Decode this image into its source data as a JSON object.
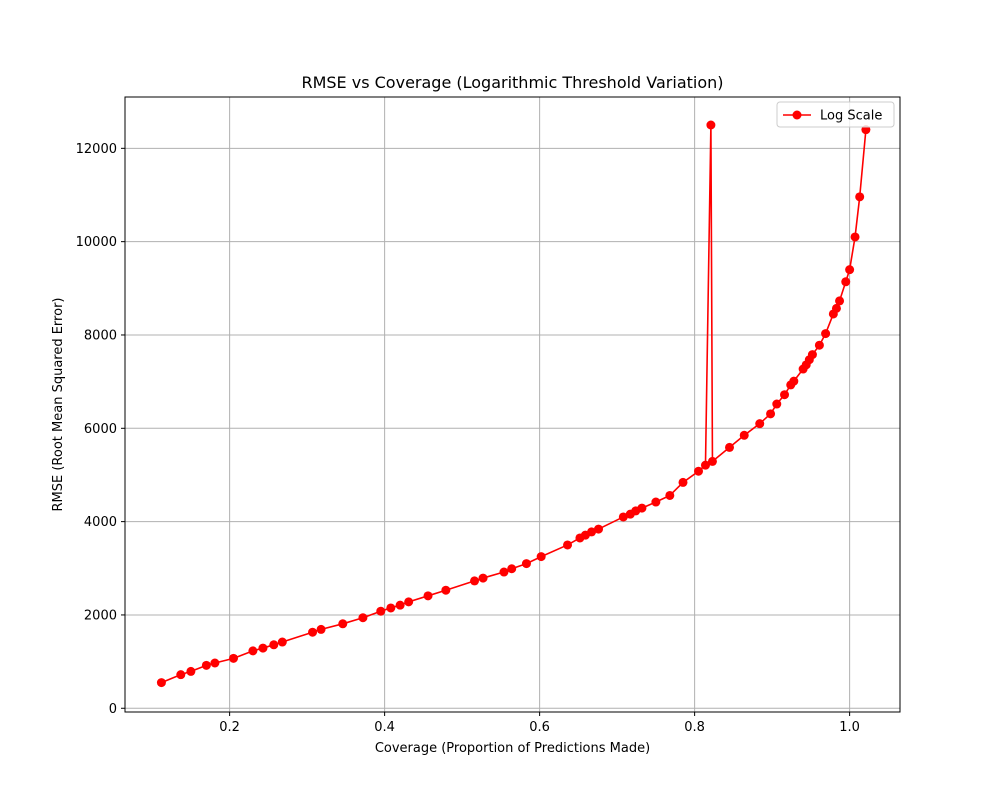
{
  "chart_data": {
    "type": "line",
    "title": "RMSE vs Coverage (Logarithmic Threshold Variation)",
    "xlabel": "Coverage (Proportion of Predictions Made)",
    "ylabel": "RMSE (Root Mean Squared Error)",
    "xlim": [
      0.065,
      1.065
    ],
    "ylim": [
      -80,
      13100
    ],
    "xticks": [
      0.2,
      0.4,
      0.6,
      0.8,
      1.0
    ],
    "xtick_labels": [
      "0.2",
      "0.4",
      "0.6",
      "0.8",
      "1.0"
    ],
    "yticks": [
      0,
      2000,
      4000,
      6000,
      8000,
      10000,
      12000
    ],
    "ytick_labels": [
      "0",
      "2000",
      "4000",
      "6000",
      "8000",
      "10000",
      "12000"
    ],
    "grid": true,
    "legend_position": "top-right",
    "series": [
      {
        "name": "Log Scale",
        "color": "#ff0000",
        "marker": "circle",
        "x": [
          0.112,
          0.137,
          0.15,
          0.17,
          0.181,
          0.205,
          0.23,
          0.243,
          0.257,
          0.268,
          0.307,
          0.318,
          0.346,
          0.372,
          0.395,
          0.408,
          0.42,
          0.431,
          0.456,
          0.479,
          0.516,
          0.527,
          0.554,
          0.564,
          0.583,
          0.602,
          0.636,
          0.652,
          0.659,
          0.667,
          0.676,
          0.708,
          0.717,
          0.724,
          0.732,
          0.75,
          0.768,
          0.785,
          0.805,
          0.814,
          0.821,
          0.823,
          0.845,
          0.864,
          0.884,
          0.898,
          0.906,
          0.916,
          0.924,
          0.928,
          0.94,
          0.944,
          0.948,
          0.952,
          0.961,
          0.969,
          0.979,
          0.983,
          0.987,
          0.995,
          1.0,
          1.007,
          1.013,
          1.021
        ],
        "y": [
          550,
          720,
          790,
          920,
          970,
          1070,
          1230,
          1290,
          1360,
          1420,
          1630,
          1690,
          1810,
          1940,
          2080,
          2150,
          2210,
          2280,
          2410,
          2530,
          2730,
          2790,
          2920,
          2990,
          3100,
          3250,
          3500,
          3650,
          3710,
          3780,
          3840,
          4100,
          4160,
          4230,
          4290,
          4420,
          4560,
          4840,
          5080,
          5210,
          12500,
          5290,
          5590,
          5850,
          6100,
          6310,
          6520,
          6720,
          6930,
          7010,
          7270,
          7360,
          7470,
          7580,
          7780,
          8030,
          8450,
          8570,
          8730,
          9140,
          9400,
          10100,
          10960,
          12400
        ]
      }
    ]
  }
}
